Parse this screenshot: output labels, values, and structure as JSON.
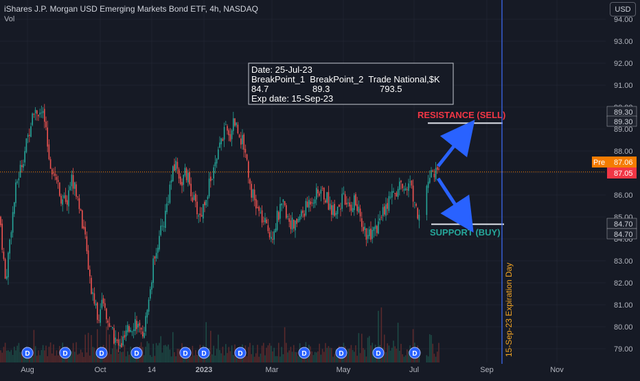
{
  "header": {
    "title": "iShares J.P. Morgan USD Emerging Markets Bond ETF, 4h, NASDAQ",
    "volume_label": "Vol",
    "currency_button": "USD"
  },
  "chart_data": {
    "type": "candlestick",
    "price_axis": {
      "ticks": [
        "94.00",
        "93.00",
        "92.00",
        "91.00",
        "90.00",
        "89.00",
        "88.00",
        "87.00",
        "86.00",
        "85.00",
        "84.00",
        "83.00",
        "82.00",
        "81.00",
        "80.00",
        "79.00"
      ],
      "range": [
        78.5,
        94.3
      ]
    },
    "time_axis": {
      "ticks": [
        "Aug",
        "Oct",
        "14",
        "2023",
        "Mar",
        "May",
        "Jul",
        "Sep",
        "Nov"
      ]
    },
    "price_path": [
      [
        0,
        85.0
      ],
      [
        8,
        82.0
      ],
      [
        16,
        84.5
      ],
      [
        24,
        86.5
      ],
      [
        32,
        87.5
      ],
      [
        40,
        88.5
      ],
      [
        48,
        90.0
      ],
      [
        56,
        89.8
      ],
      [
        64,
        89.5
      ],
      [
        72,
        87.5
      ],
      [
        80,
        87.0
      ],
      [
        88,
        86.0
      ],
      [
        96,
        85.5
      ],
      [
        104,
        86.8
      ],
      [
        112,
        86.0
      ],
      [
        120,
        84.8
      ],
      [
        128,
        83.0
      ],
      [
        134,
        81.5
      ],
      [
        142,
        80.5
      ],
      [
        150,
        81.0
      ],
      [
        158,
        80.0
      ],
      [
        166,
        79.5
      ],
      [
        174,
        79.0
      ],
      [
        182,
        79.5
      ],
      [
        190,
        80.0
      ],
      [
        198,
        80.3
      ],
      [
        206,
        79.5
      ],
      [
        214,
        80.5
      ],
      [
        220,
        82.0
      ],
      [
        226,
        83.5
      ],
      [
        232,
        84.0
      ],
      [
        240,
        85.0
      ],
      [
        248,
        86.5
      ],
      [
        256,
        87.5
      ],
      [
        264,
        86.5
      ],
      [
        270,
        87.0
      ],
      [
        276,
        86.5
      ],
      [
        284,
        85.5
      ],
      [
        292,
        85.0
      ],
      [
        300,
        86.0
      ],
      [
        308,
        86.8
      ],
      [
        316,
        87.5
      ],
      [
        322,
        88.5
      ],
      [
        328,
        89.0
      ],
      [
        334,
        88.5
      ],
      [
        340,
        89.5
      ],
      [
        346,
        89.0
      ],
      [
        352,
        88.5
      ],
      [
        358,
        88.0
      ],
      [
        364,
        86.5
      ],
      [
        372,
        85.5
      ],
      [
        380,
        85.0
      ],
      [
        388,
        84.5
      ],
      [
        396,
        84.2
      ],
      [
        404,
        85.0
      ],
      [
        412,
        85.5
      ],
      [
        420,
        85.0
      ],
      [
        428,
        84.5
      ],
      [
        436,
        85.0
      ],
      [
        444,
        85.3
      ],
      [
        452,
        85.8
      ],
      [
        460,
        86.0
      ],
      [
        468,
        86.2
      ],
      [
        476,
        85.8
      ],
      [
        484,
        85.3
      ],
      [
        492,
        85.5
      ],
      [
        500,
        85.8
      ],
      [
        508,
        85.3
      ],
      [
        516,
        85.8
      ],
      [
        524,
        85.0
      ],
      [
        532,
        84.3
      ],
      [
        540,
        84.0
      ],
      [
        548,
        84.5
      ],
      [
        556,
        85.0
      ],
      [
        564,
        85.5
      ],
      [
        572,
        86.0
      ],
      [
        580,
        86.2
      ],
      [
        588,
        86.5
      ],
      [
        596,
        86.5
      ],
      [
        604,
        85.8
      ],
      [
        610,
        85.0
      ],
      [
        616,
        85.3
      ],
      [
        622,
        86.5
      ],
      [
        628,
        87.2
      ],
      [
        634,
        87.0
      ]
    ],
    "current_price": {
      "label": "87.05",
      "value": 87.05
    },
    "premarket": {
      "label": "Pre",
      "value": "87.06"
    },
    "levels": [
      {
        "name": "RESISTANCE (SELL)",
        "value": 89.3,
        "label": "89.30",
        "color": "#f23645"
      },
      {
        "name": "SUPPORT (BUY)",
        "value": 84.7,
        "label": "84.70",
        "color": "#26a69a"
      }
    ],
    "expiration": {
      "label": "15-Sep-23 Expiration Day",
      "color": "#3f6dff"
    },
    "dividend_marker": "D",
    "dividend_x": [
      40,
      95,
      148,
      199,
      270,
      297,
      350,
      443,
      497,
      551,
      604
    ],
    "colors": {
      "up": "#26a69a",
      "down": "#ef5350",
      "arrow": "#2962ff",
      "price_line": "#f57c00"
    }
  },
  "info_box": {
    "line1": "Date: 25-Jul-23",
    "line2": "BreakPoint_1  BreakPoint_2  Trade National,$K",
    "v1": "84.7",
    "v2": "89.3",
    "v3": "793.5",
    "line4": "Exp date: 15-Sep-23"
  }
}
